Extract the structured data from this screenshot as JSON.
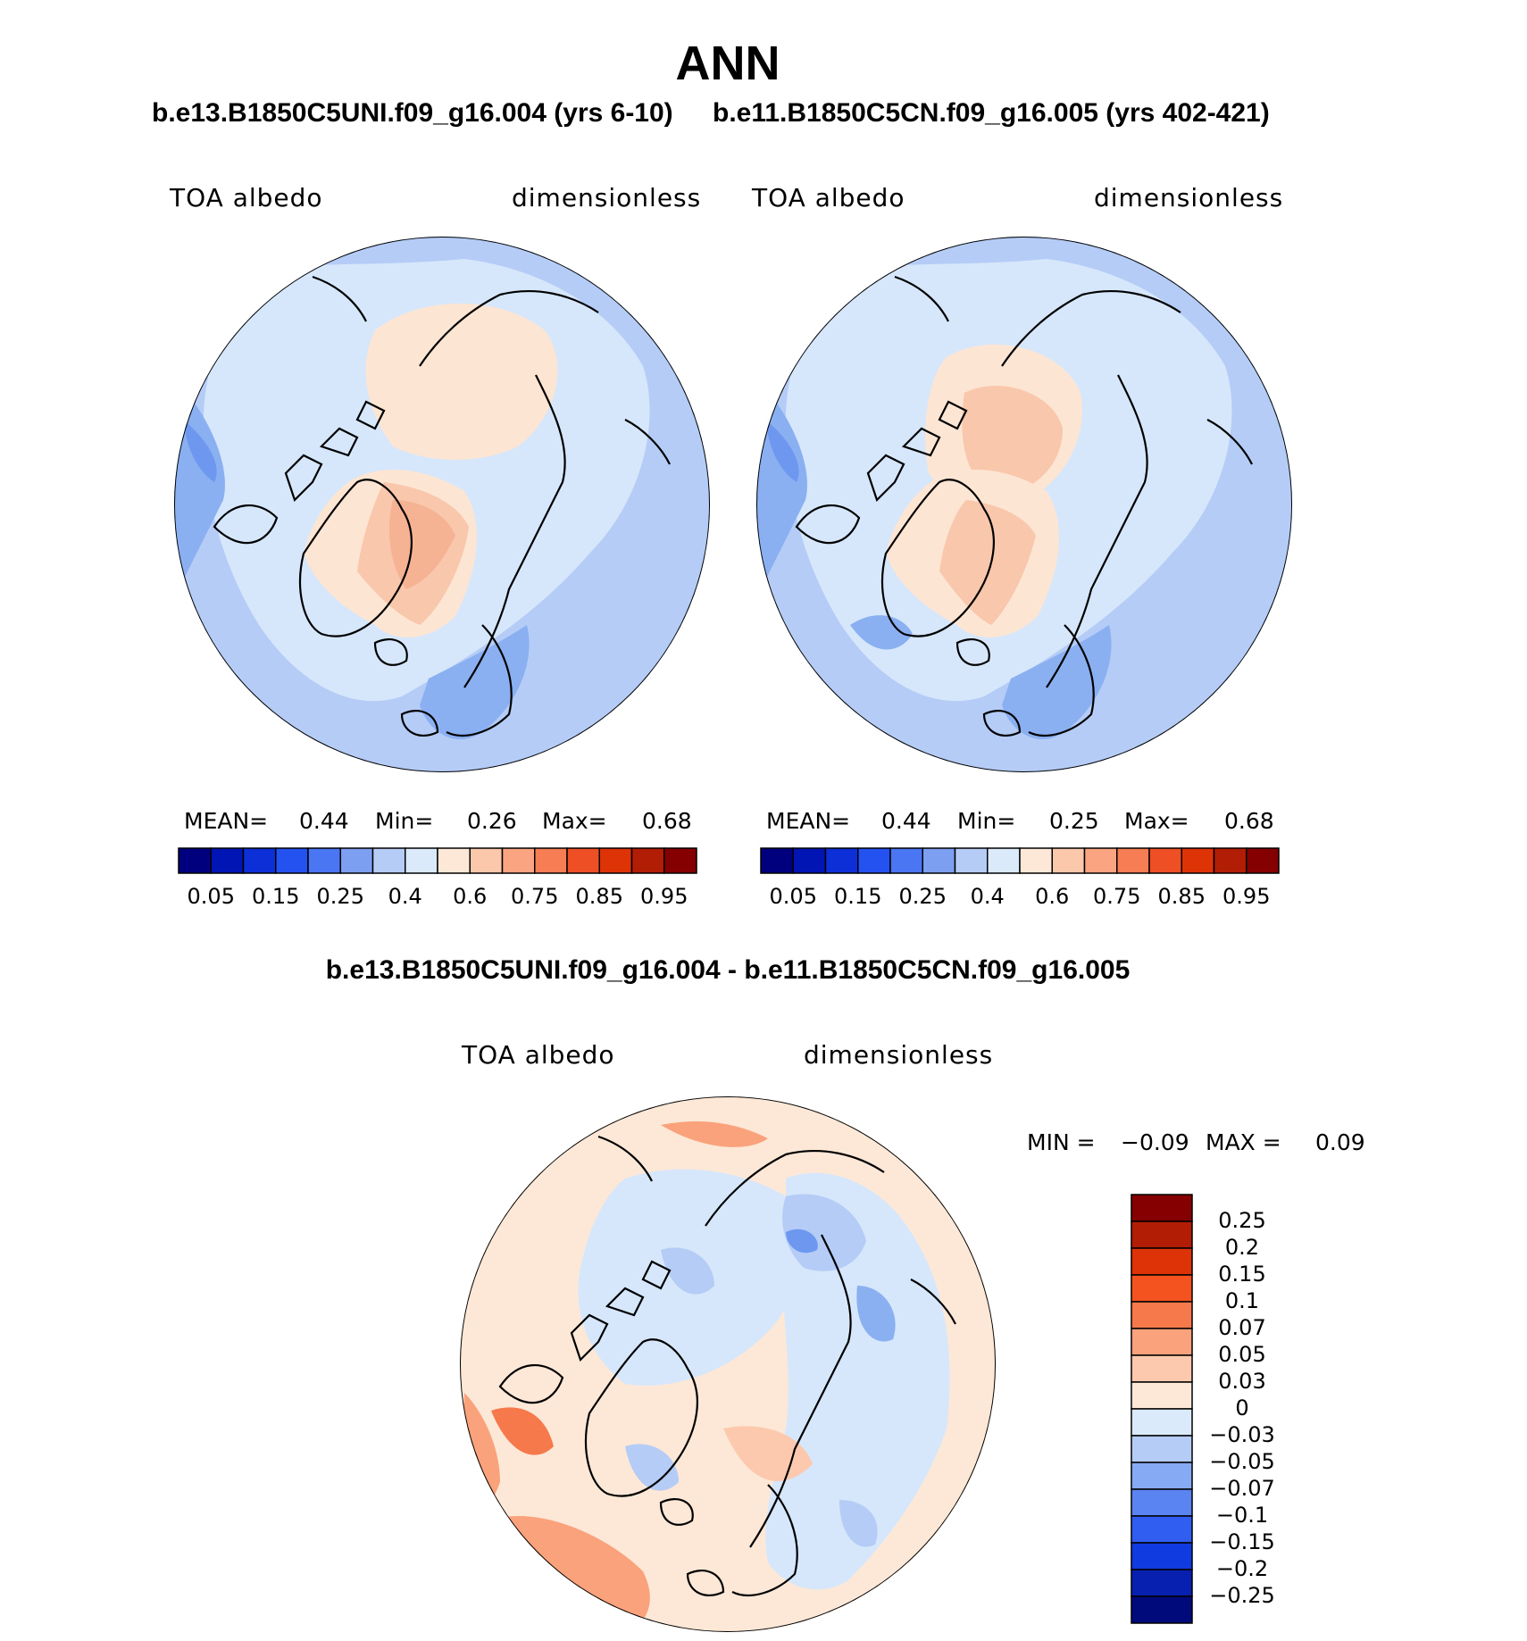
{
  "main_title": "ANN",
  "colors": {
    "land_outline": "#000000",
    "positive_light": "#fde5d4",
    "background_blue": "#b4ccf6",
    "light_blue": "#d6e7fb",
    "mid_blue": "#8ab0f2"
  },
  "panels": [
    {
      "title": "b.e13.B1850C5UNI.f09_g16.004 (yrs 6-10)",
      "left_label": "TOA  albedo",
      "right_label": "dimensionless",
      "stats": {
        "mean_label": "MEAN=",
        "mean": "0.44",
        "min_label": "Min=",
        "min": "0.26",
        "max_label": "Max=",
        "max": "0.68"
      }
    },
    {
      "title": "b.e11.B1850C5CN.f09_g16.005 (yrs 402-421)",
      "left_label": "TOA  albedo",
      "right_label": "dimensionless",
      "stats": {
        "mean_label": "MEAN=",
        "mean": "0.44",
        "min_label": "Min=",
        "min": "0.25",
        "max_label": "Max=",
        "max": "0.68"
      }
    }
  ],
  "colorbar_top": {
    "colors": [
      "#00007f",
      "#0015b4",
      "#0d2fd8",
      "#2352f0",
      "#4b76f3",
      "#7c9ff2",
      "#b4ccf6",
      "#dbeafb",
      "#fde8d7",
      "#fcc8ac",
      "#fba482",
      "#f67d54",
      "#ef4f24",
      "#de3207",
      "#b21d06",
      "#850000"
    ],
    "labels": [
      "0.05",
      "0.15",
      "0.25",
      "0.4",
      "0.6",
      "0.75",
      "0.85",
      "0.95"
    ]
  },
  "difference": {
    "title": "b.e13.B1850C5UNI.f09_g16.004 - b.e11.B1850C5CN.f09_g16.005",
    "left_label": "TOA  albedo",
    "right_label": "dimensionless",
    "stats": {
      "min_label": "MIN =",
      "min": "−0.09",
      "max_label": "MAX =",
      "max": "0.09"
    },
    "colorbar": {
      "colors": [
        "#850000",
        "#b21d06",
        "#de3207",
        "#f4521e",
        "#f6794c",
        "#f9a27c",
        "#fcc9ae",
        "#fde8d7",
        "#dbeafb",
        "#b4ccf6",
        "#86aaf4",
        "#5a84f2",
        "#2f5ef0",
        "#0f3be0",
        "#0720b0",
        "#000a7a"
      ],
      "labels": [
        "0.25",
        "0.2",
        "0.15",
        "0.1",
        "0.07",
        "0.05",
        "0.03",
        "0",
        "−0.03",
        "−0.05",
        "−0.07",
        "−0.1",
        "−0.15",
        "−0.2",
        "−0.25"
      ]
    }
  }
}
